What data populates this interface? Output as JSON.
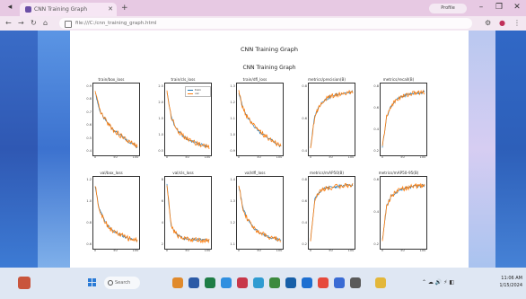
{
  "browser": {
    "tab_title": "CNN Training Graph",
    "new_tab_icon": "plus-icon",
    "profile_label": "Profile",
    "url": "file:///C:/cnn_training_graph.html"
  },
  "page": {
    "heading": "CNN Training Graph",
    "figure_title": "CNN Training Graph"
  },
  "legend": {
    "items": [
      "train",
      "val"
    ],
    "colors": [
      "#1f77b4",
      "#ff7f0e"
    ]
  },
  "taskbar": {
    "search_placeholder": "Search",
    "time": "11:06 AM",
    "date": "1/15/2024"
  },
  "chart_data": {
    "type": "line",
    "layout": "2x5 grid of line subplots",
    "series_colors": [
      "#1f77b4",
      "#ff7f0e"
    ],
    "subplots": [
      {
        "title": "train/box_loss",
        "x": [
          0,
          10,
          20,
          30,
          40,
          50,
          60,
          70,
          80,
          90,
          100
        ],
        "y": [
          0.93,
          0.76,
          0.68,
          0.63,
          0.58,
          0.54,
          0.51,
          0.48,
          0.45,
          0.43,
          0.4
        ],
        "yticks": [
          "0.9",
          "0.8",
          "0.7",
          "0.6",
          "0.5",
          "0.4"
        ],
        "xticks": [
          "0",
          "50",
          "100"
        ]
      },
      {
        "title": "train/cls_loss",
        "x": [
          0,
          10,
          20,
          30,
          40,
          50,
          60,
          70,
          80,
          90,
          100
        ],
        "y": [
          2.6,
          1.7,
          1.3,
          1.1,
          0.95,
          0.85,
          0.78,
          0.72,
          0.66,
          0.62,
          0.58
        ],
        "yticks": [
          "2.5",
          "2.0",
          "1.5",
          "1.0",
          "0.5"
        ],
        "xticks": [
          "0",
          "50",
          "100"
        ],
        "legend": true
      },
      {
        "title": "train/dfl_loss",
        "x": [
          0,
          10,
          20,
          30,
          40,
          50,
          60,
          70,
          80,
          90,
          100
        ],
        "y": [
          1.3,
          1.19,
          1.13,
          1.09,
          1.06,
          1.03,
          1.01,
          0.99,
          0.97,
          0.95,
          0.93
        ],
        "yticks": [
          "1.3",
          "1.2",
          "1.1",
          "1.0",
          "0.9"
        ],
        "xticks": [
          "0",
          "50",
          "100"
        ]
      },
      {
        "title": "metrics/precision(B)",
        "x": [
          0,
          10,
          20,
          30,
          40,
          50,
          60,
          70,
          80,
          90,
          100
        ],
        "y": [
          0.3,
          0.62,
          0.72,
          0.78,
          0.8,
          0.83,
          0.84,
          0.85,
          0.86,
          0.86,
          0.87
        ],
        "yticks": [
          "0.8",
          "0.6",
          "0.4"
        ],
        "xticks": [
          "0",
          "50",
          "100"
        ]
      },
      {
        "title": "metrics/recall(B)",
        "x": [
          0,
          10,
          20,
          30,
          40,
          50,
          60,
          70,
          80,
          90,
          100
        ],
        "y": [
          0.2,
          0.55,
          0.68,
          0.74,
          0.78,
          0.8,
          0.82,
          0.83,
          0.84,
          0.84,
          0.85
        ],
        "yticks": [
          "0.8",
          "0.6",
          "0.4",
          "0.2"
        ],
        "xticks": [
          "0",
          "50",
          "100"
        ]
      },
      {
        "title": "val/box_loss",
        "x": [
          0,
          10,
          20,
          30,
          40,
          50,
          60,
          70,
          80,
          90,
          100
        ],
        "y": [
          1.25,
          0.98,
          0.88,
          0.8,
          0.75,
          0.72,
          0.7,
          0.68,
          0.66,
          0.65,
          0.64
        ],
        "yticks": [
          "1.2",
          "1.0",
          "0.8",
          "0.6"
        ],
        "xticks": [
          "0",
          "50",
          "100"
        ]
      },
      {
        "title": "val/cls_loss",
        "x": [
          0,
          10,
          20,
          30,
          40,
          50,
          60,
          70,
          80,
          90,
          100
        ],
        "y": [
          7.5,
          2.6,
          1.6,
          1.2,
          1.0,
          0.92,
          0.86,
          0.82,
          0.8,
          0.78,
          0.76
        ],
        "yticks": [
          "8",
          "6",
          "4",
          "2"
        ],
        "xticks": [
          "0",
          "50",
          "100"
        ]
      },
      {
        "title": "val/dfl_loss",
        "x": [
          0,
          10,
          20,
          30,
          40,
          50,
          60,
          70,
          80,
          90,
          100
        ],
        "y": [
          1.45,
          1.28,
          1.2,
          1.15,
          1.12,
          1.1,
          1.08,
          1.07,
          1.06,
          1.05,
          1.04
        ],
        "yticks": [
          "1.4",
          "1.3",
          "1.2",
          "1.1"
        ],
        "xticks": [
          "0",
          "50",
          "100"
        ]
      },
      {
        "title": "metrics/mAP50(B)",
        "x": [
          0,
          10,
          20,
          30,
          40,
          50,
          60,
          70,
          80,
          90,
          100
        ],
        "y": [
          0.1,
          0.7,
          0.8,
          0.84,
          0.86,
          0.87,
          0.88,
          0.89,
          0.89,
          0.9,
          0.9
        ],
        "yticks": [
          "0.8",
          "0.6",
          "0.4",
          "0.2"
        ],
        "xticks": [
          "0",
          "50",
          "100"
        ]
      },
      {
        "title": "metrics/mAP50-95(B)",
        "x": [
          0,
          10,
          20,
          30,
          40,
          50,
          60,
          70,
          80,
          90,
          100
        ],
        "y": [
          0.05,
          0.45,
          0.55,
          0.6,
          0.63,
          0.65,
          0.66,
          0.67,
          0.68,
          0.68,
          0.69
        ],
        "yticks": [
          "0.6",
          "0.4",
          "0.2"
        ],
        "xticks": [
          "0",
          "50",
          "100"
        ]
      }
    ]
  }
}
